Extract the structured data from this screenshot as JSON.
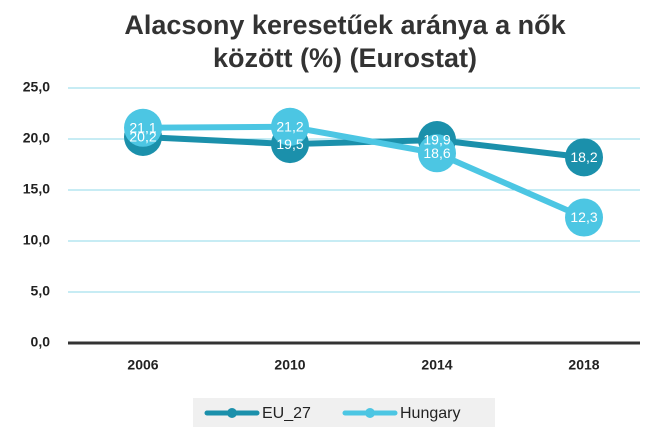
{
  "chart_data": {
    "type": "line",
    "title": [
      "Alacsony keresetűek aránya a nők",
      "között (%) (Eurostat)"
    ],
    "categories": [
      "2006",
      "2010",
      "2014",
      "2018"
    ],
    "series": [
      {
        "name": "EU_27",
        "color": "#1b90ab",
        "values": [
          20.2,
          19.5,
          19.9,
          18.2
        ],
        "value_labels": [
          "20,2",
          "19,5",
          "19,9",
          "18,2"
        ]
      },
      {
        "name": "Hungary",
        "color": "#4cc6e3",
        "values": [
          21.1,
          21.2,
          18.6,
          12.3
        ],
        "value_labels": [
          "21,1",
          "21,2",
          "18,6",
          "12,3"
        ]
      }
    ],
    "ylim": [
      0,
      25
    ],
    "yticks": [
      {
        "value": 0,
        "label": "0,0"
      },
      {
        "value": 5,
        "label": "5,0"
      },
      {
        "value": 10,
        "label": "10,0"
      },
      {
        "value": 15,
        "label": "15,0"
      },
      {
        "value": 20,
        "label": "20,0"
      },
      {
        "value": 25,
        "label": "25,0"
      }
    ],
    "grid": true,
    "legend": "bottom"
  }
}
